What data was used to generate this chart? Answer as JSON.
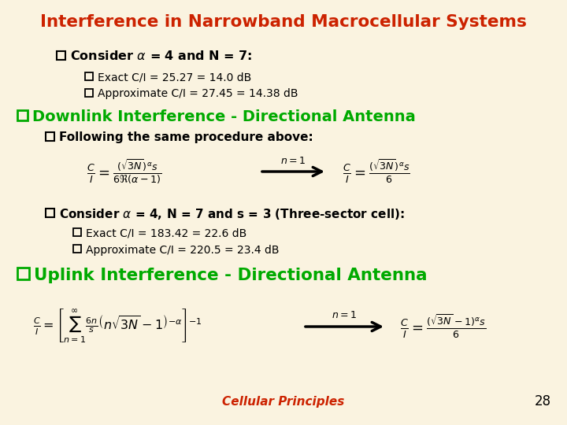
{
  "title": "Interference in Narrowband Macrocellular Systems",
  "title_color": "#CC2200",
  "bg_color": "#FAF3E0",
  "green_color": "#00AA00",
  "black_color": "#111111",
  "footer_text": "Cellular Principles",
  "footer_color": "#CC2200",
  "page_number": "28"
}
